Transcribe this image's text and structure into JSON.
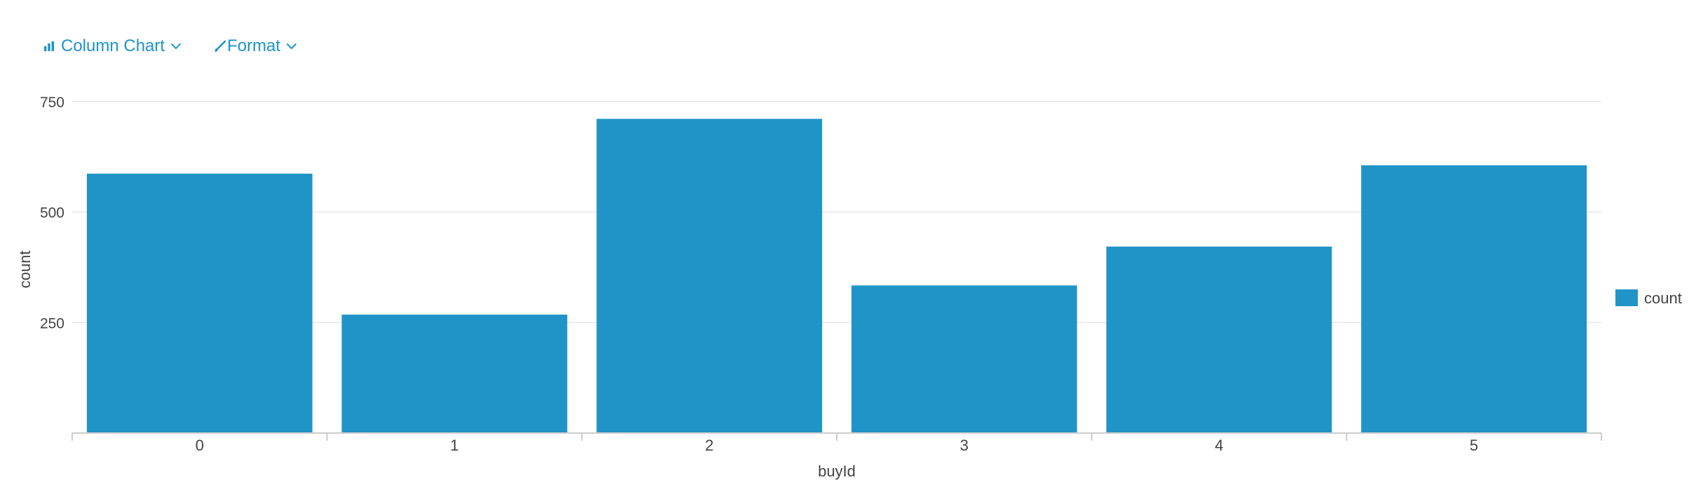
{
  "toolbar": {
    "chart_type_label": "Column Chart",
    "format_label": "Format"
  },
  "colors": {
    "accent": "#1f93c8",
    "bar": "#2194c7",
    "grid": "#e6e6e6",
    "axis": "#cccccc",
    "text": "#444444"
  },
  "icons": {
    "chart_type": "bar-chart-icon",
    "format": "brush-icon",
    "dropdown": "chevron-down-icon"
  },
  "chart_data": {
    "type": "bar",
    "categories": [
      "0",
      "1",
      "2",
      "3",
      "4",
      "5"
    ],
    "series": [
      {
        "name": "count",
        "values": [
          587,
          268,
          711,
          334,
          422,
          606
        ]
      }
    ],
    "xlabel": "buyId",
    "ylabel": "count",
    "ylim": [
      0,
      750
    ],
    "yticks": [
      250,
      500,
      750
    ],
    "grid": true,
    "legend_position": "right"
  }
}
